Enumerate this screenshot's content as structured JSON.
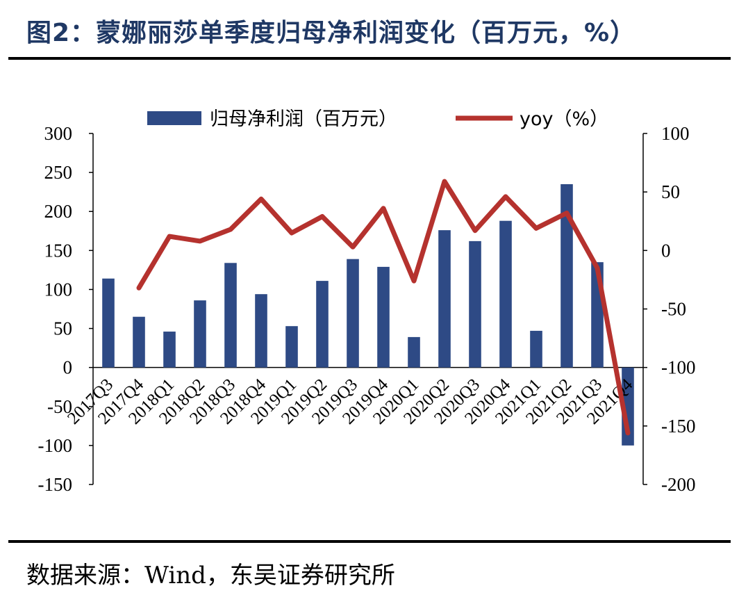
{
  "title": "图2：蒙娜丽莎单季度归母净利润变化（百万元，%）",
  "source": "数据来源：Wind，东吴证券研究所",
  "colors": {
    "bar": "#2e4a85",
    "line": "#b5322e",
    "title": "#1f3864"
  },
  "chart_data": {
    "type": "bar",
    "categories": [
      "2017Q3",
      "2017Q4",
      "2018Q1",
      "2018Q2",
      "2018Q3",
      "2018Q4",
      "2019Q1",
      "2019Q2",
      "2019Q3",
      "2019Q4",
      "2020Q1",
      "2020Q2",
      "2020Q3",
      "2020Q4",
      "2021Q1",
      "2021Q2",
      "2021Q3",
      "2021Q4"
    ],
    "series": [
      {
        "name": "归母净利润（百万元）",
        "type": "bar",
        "axis": "left",
        "values": [
          114,
          65,
          46,
          86,
          134,
          94,
          53,
          111,
          139,
          129,
          39,
          176,
          162,
          188,
          47,
          235,
          135,
          -100
        ]
      },
      {
        "name": "yoy（%）",
        "type": "line",
        "axis": "right",
        "values": [
          null,
          -32,
          12,
          8,
          18,
          44,
          15,
          29,
          3,
          36,
          -26,
          59,
          17,
          46,
          19,
          32,
          -15,
          -156
        ]
      }
    ],
    "y_left": {
      "min": -150,
      "max": 300,
      "ticks": [
        300,
        250,
        200,
        150,
        100,
        50,
        0,
        -50,
        -100,
        -150
      ]
    },
    "y_right": {
      "min": -200,
      "max": 100,
      "ticks": [
        100,
        50,
        0,
        -50,
        -100,
        -150,
        -200
      ]
    },
    "legend": "top-center",
    "grid": false
  }
}
